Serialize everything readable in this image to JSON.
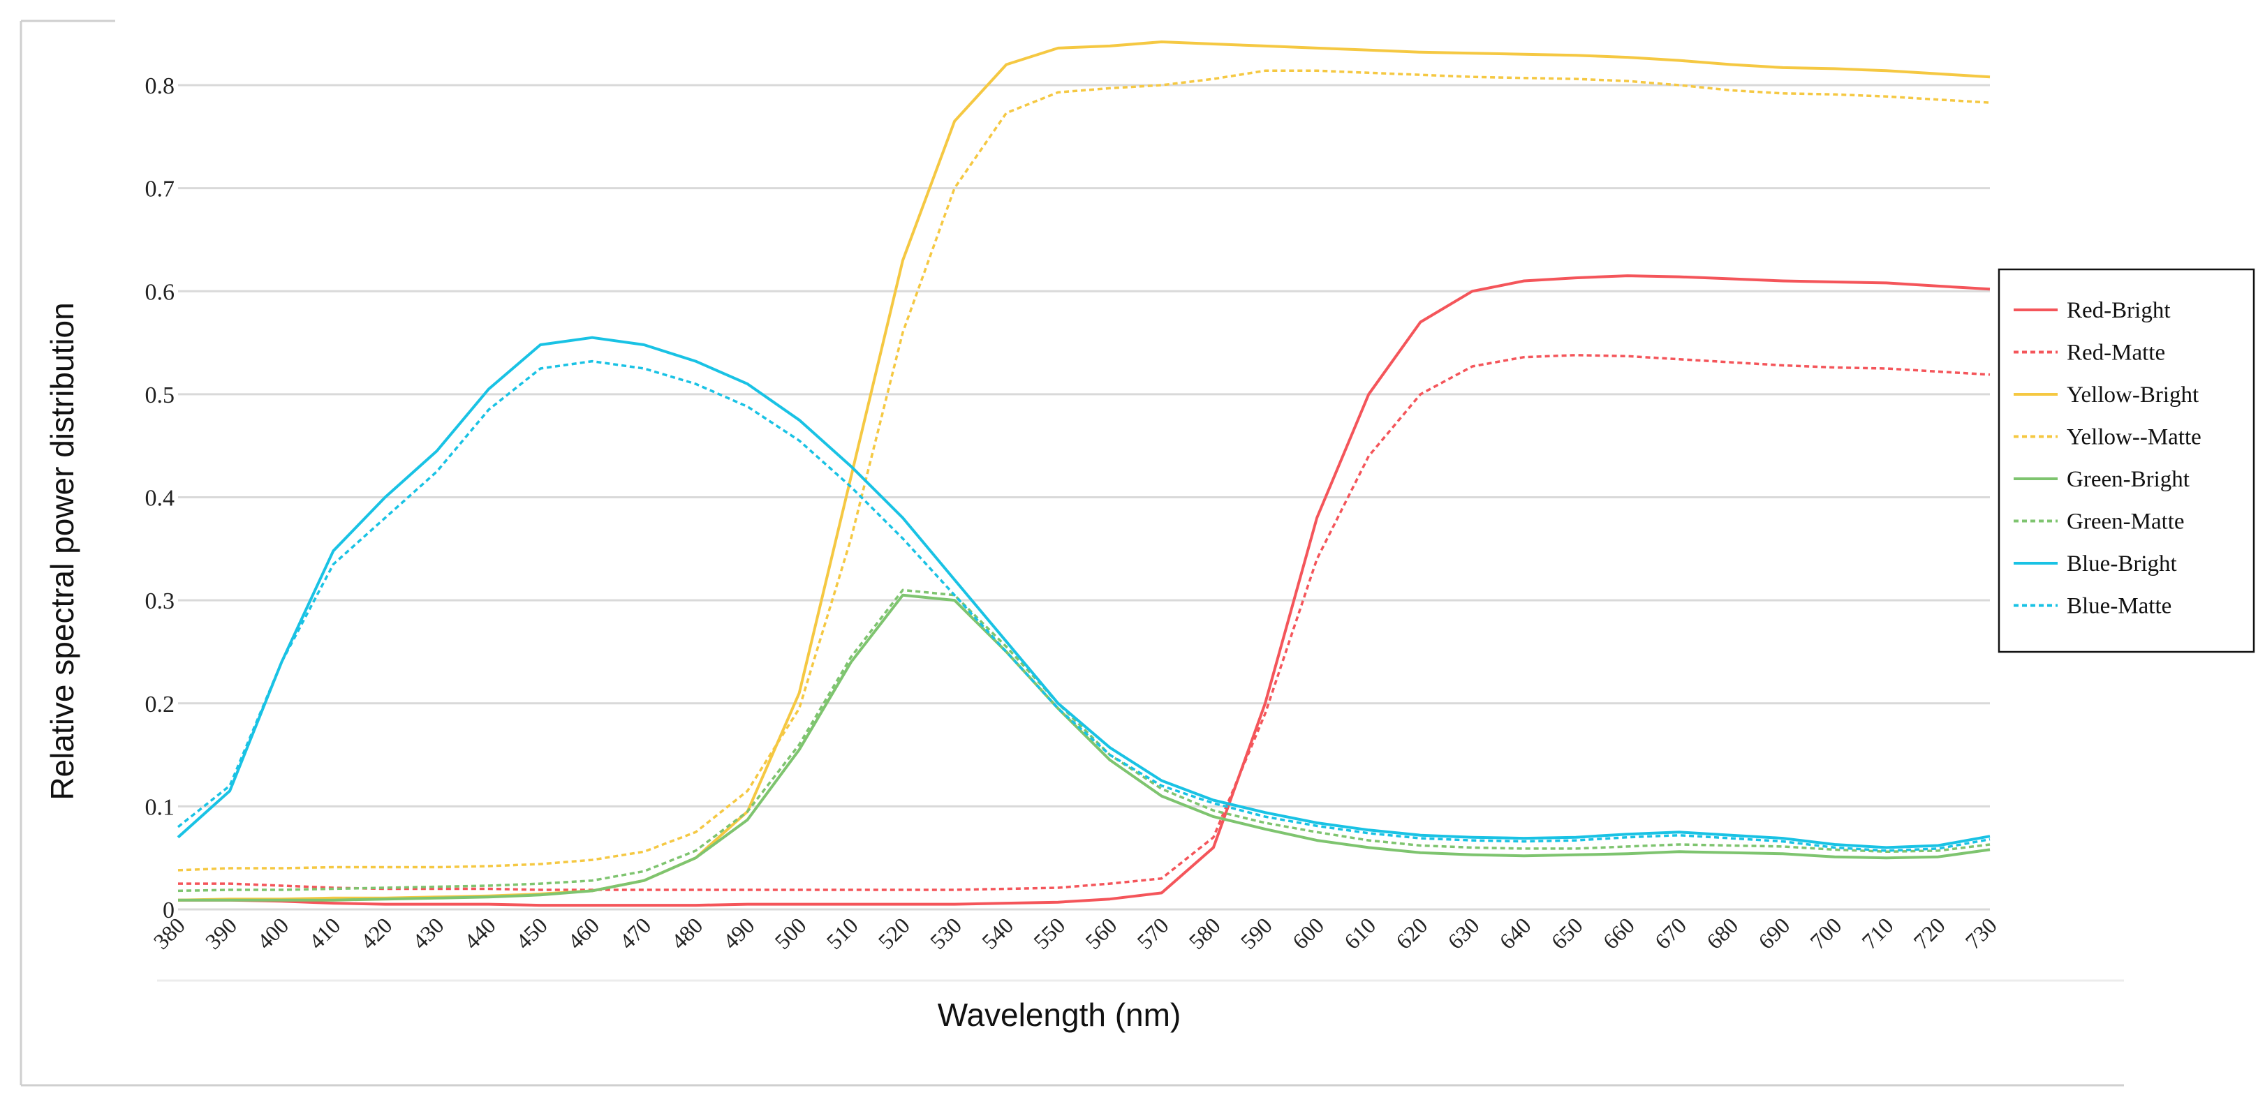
{
  "chart_data": {
    "type": "line",
    "title": "",
    "xlabel": "Wavelength (nm)",
    "ylabel": "Relative spectral power distribution",
    "xlim": [
      380,
      730
    ],
    "ylim": [
      0,
      0.85
    ],
    "grid": true,
    "legend_position": "right",
    "x": [
      380,
      390,
      400,
      410,
      420,
      430,
      440,
      450,
      460,
      470,
      480,
      490,
      500,
      510,
      520,
      530,
      540,
      550,
      560,
      570,
      580,
      590,
      600,
      610,
      620,
      630,
      640,
      650,
      660,
      670,
      680,
      690,
      700,
      710,
      720,
      730
    ],
    "x_tick_labels": [
      "380",
      "390",
      "400",
      "410",
      "420",
      "430",
      "440",
      "450",
      "460",
      "470",
      "480",
      "490",
      "500",
      "510",
      "520",
      "530",
      "540",
      "550",
      "560",
      "570",
      "580",
      "590",
      "600",
      "610",
      "620",
      "630",
      "640",
      "650",
      "660",
      "670",
      "680",
      "690",
      "700",
      "710",
      "720",
      "730"
    ],
    "y_ticks": [
      0,
      0.1,
      0.2,
      0.3,
      0.4,
      0.5,
      0.6,
      0.7,
      0.8
    ],
    "y_tick_labels": [
      "0",
      "0.1",
      "0.2",
      "0.3",
      "0.4",
      "0.5",
      "0.6",
      "0.7",
      "0.8"
    ],
    "series": [
      {
        "name": "Red-Bright",
        "color": "#f4555a",
        "dash": "solid",
        "values": [
          0.009,
          0.009,
          0.008,
          0.006,
          0.005,
          0.005,
          0.005,
          0.004,
          0.004,
          0.004,
          0.004,
          0.005,
          0.005,
          0.005,
          0.005,
          0.005,
          0.006,
          0.007,
          0.01,
          0.016,
          0.06,
          0.2,
          0.38,
          0.5,
          0.57,
          0.6,
          0.61,
          0.613,
          0.615,
          0.614,
          0.612,
          0.61,
          0.609,
          0.608,
          0.605,
          0.602
        ]
      },
      {
        "name": "Red-Matte",
        "color": "#f4555a",
        "dash": "dotted",
        "values": [
          0.025,
          0.025,
          0.023,
          0.021,
          0.02,
          0.02,
          0.02,
          0.019,
          0.019,
          0.019,
          0.019,
          0.019,
          0.019,
          0.019,
          0.019,
          0.019,
          0.02,
          0.021,
          0.025,
          0.03,
          0.07,
          0.19,
          0.34,
          0.44,
          0.5,
          0.527,
          0.536,
          0.538,
          0.537,
          0.534,
          0.531,
          0.528,
          0.526,
          0.525,
          0.522,
          0.519
        ]
      },
      {
        "name": "Yellow-Bright",
        "color": "#f5c842",
        "dash": "solid",
        "values": [
          0.009,
          0.01,
          0.01,
          0.011,
          0.011,
          0.012,
          0.013,
          0.015,
          0.018,
          0.028,
          0.05,
          0.095,
          0.21,
          0.42,
          0.63,
          0.765,
          0.82,
          0.836,
          0.838,
          0.842,
          0.84,
          0.838,
          0.836,
          0.834,
          0.832,
          0.831,
          0.83,
          0.829,
          0.827,
          0.824,
          0.82,
          0.817,
          0.816,
          0.814,
          0.811,
          0.808
        ]
      },
      {
        "name": "Yellow--Matte",
        "color": "#f5c842",
        "dash": "dotted",
        "values": [
          0.038,
          0.04,
          0.04,
          0.041,
          0.041,
          0.041,
          0.042,
          0.044,
          0.048,
          0.056,
          0.075,
          0.115,
          0.195,
          0.36,
          0.56,
          0.7,
          0.773,
          0.793,
          0.797,
          0.8,
          0.806,
          0.814,
          0.814,
          0.812,
          0.81,
          0.808,
          0.807,
          0.806,
          0.804,
          0.8,
          0.795,
          0.792,
          0.791,
          0.789,
          0.786,
          0.783
        ]
      },
      {
        "name": "Green-Bright",
        "color": "#7ec46f",
        "dash": "solid",
        "values": [
          0.009,
          0.009,
          0.009,
          0.009,
          0.01,
          0.011,
          0.012,
          0.014,
          0.018,
          0.028,
          0.05,
          0.087,
          0.155,
          0.24,
          0.305,
          0.3,
          0.25,
          0.195,
          0.145,
          0.11,
          0.09,
          0.078,
          0.067,
          0.06,
          0.055,
          0.053,
          0.052,
          0.053,
          0.054,
          0.056,
          0.055,
          0.054,
          0.051,
          0.05,
          0.051,
          0.058
        ]
      },
      {
        "name": "Green-Matte",
        "color": "#7ec46f",
        "dash": "dotted",
        "values": [
          0.018,
          0.019,
          0.019,
          0.02,
          0.021,
          0.022,
          0.023,
          0.025,
          0.028,
          0.037,
          0.057,
          0.095,
          0.16,
          0.245,
          0.31,
          0.305,
          0.255,
          0.2,
          0.15,
          0.117,
          0.096,
          0.084,
          0.075,
          0.067,
          0.062,
          0.06,
          0.059,
          0.059,
          0.061,
          0.063,
          0.062,
          0.061,
          0.058,
          0.056,
          0.057,
          0.063
        ]
      },
      {
        "name": "Blue-Bright",
        "color": "#19c2e4",
        "dash": "solid",
        "values": [
          0.07,
          0.115,
          0.24,
          0.348,
          0.4,
          0.445,
          0.505,
          0.548,
          0.555,
          0.548,
          0.532,
          0.51,
          0.475,
          0.43,
          0.38,
          0.32,
          0.26,
          0.2,
          0.157,
          0.125,
          0.106,
          0.094,
          0.084,
          0.077,
          0.072,
          0.07,
          0.069,
          0.07,
          0.073,
          0.075,
          0.072,
          0.069,
          0.063,
          0.06,
          0.062,
          0.071
        ]
      },
      {
        "name": "Blue-Matte",
        "color": "#19c2e4",
        "dash": "dotted",
        "values": [
          0.08,
          0.12,
          0.24,
          0.335,
          0.38,
          0.425,
          0.485,
          0.525,
          0.532,
          0.525,
          0.51,
          0.488,
          0.455,
          0.41,
          0.36,
          0.305,
          0.25,
          0.195,
          0.15,
          0.12,
          0.103,
          0.09,
          0.081,
          0.074,
          0.069,
          0.067,
          0.066,
          0.067,
          0.07,
          0.072,
          0.069,
          0.066,
          0.06,
          0.057,
          0.059,
          0.068
        ]
      }
    ]
  }
}
